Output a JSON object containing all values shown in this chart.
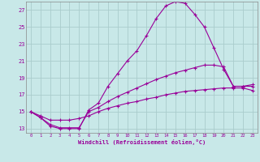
{
  "xlabel": "Windchill (Refroidissement éolien,°C)",
  "bg_color": "#c8e8e8",
  "line_color": "#990099",
  "grid_color": "#aacccc",
  "x_ticks": [
    0,
    1,
    2,
    3,
    4,
    5,
    6,
    7,
    8,
    9,
    10,
    11,
    12,
    13,
    14,
    15,
    16,
    17,
    18,
    19,
    20,
    21,
    22,
    23
  ],
  "y_ticks": [
    13,
    15,
    17,
    19,
    21,
    23,
    25,
    27
  ],
  "xlim": [
    -0.5,
    23.5
  ],
  "ylim": [
    12.5,
    28.0
  ],
  "line1_x": [
    0,
    1,
    2,
    3,
    4,
    5,
    6,
    7,
    8,
    9,
    10,
    11,
    12,
    13,
    14,
    15,
    16,
    17,
    18,
    19,
    20,
    21,
    22,
    23
  ],
  "line1_y": [
    15.0,
    14.3,
    13.3,
    13.0,
    13.0,
    13.0,
    15.2,
    16.0,
    18.0,
    19.5,
    21.0,
    22.2,
    24.0,
    26.0,
    27.5,
    28.0,
    27.8,
    26.5,
    25.0,
    22.5,
    20.0,
    18.0,
    18.0,
    18.0
  ],
  "line2_x": [
    0,
    1,
    2,
    3,
    4,
    5,
    6,
    7,
    8,
    9,
    10,
    11,
    12,
    13,
    14,
    15,
    16,
    17,
    18,
    19,
    20,
    21,
    22,
    23
  ],
  "line2_y": [
    15.0,
    14.3,
    13.5,
    13.1,
    13.1,
    13.1,
    15.0,
    15.5,
    16.2,
    16.8,
    17.3,
    17.8,
    18.3,
    18.8,
    19.2,
    19.6,
    19.9,
    20.2,
    20.5,
    20.5,
    20.3,
    18.0,
    18.0,
    18.2
  ],
  "line3_x": [
    0,
    1,
    2,
    3,
    4,
    5,
    6,
    7,
    8,
    9,
    10,
    11,
    12,
    13,
    14,
    15,
    16,
    17,
    18,
    19,
    20,
    21,
    22,
    23
  ],
  "line3_y": [
    15.0,
    14.5,
    14.0,
    14.0,
    14.0,
    14.2,
    14.5,
    15.0,
    15.4,
    15.7,
    16.0,
    16.2,
    16.5,
    16.7,
    17.0,
    17.2,
    17.4,
    17.5,
    17.6,
    17.7,
    17.8,
    17.8,
    17.8,
    17.5
  ]
}
